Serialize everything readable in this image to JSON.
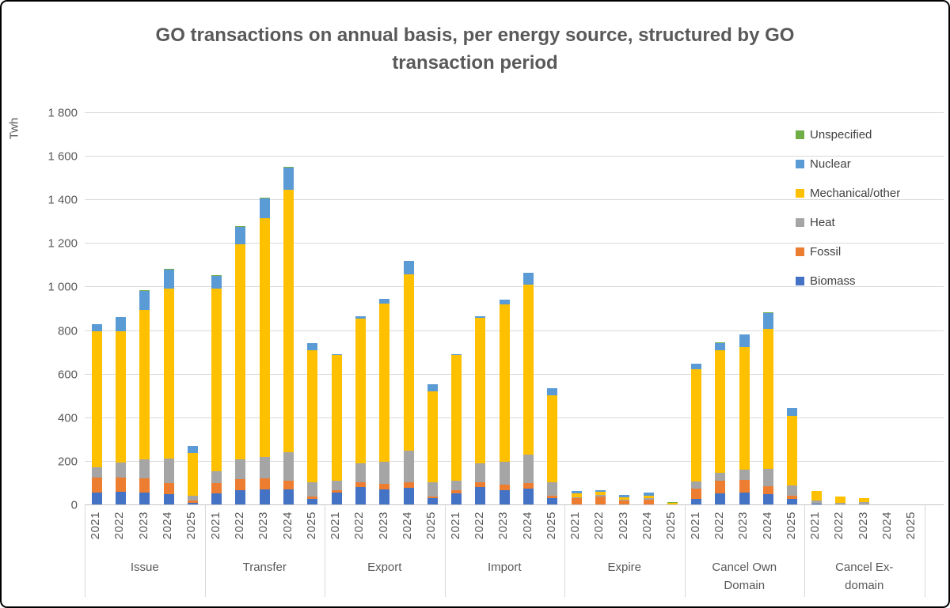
{
  "chart_data": {
    "type": "bar",
    "stacked": true,
    "title": "GO transactions on annual basis, per energy source, structured by GO transaction period",
    "ylabel": "Twh",
    "ylim": [
      0,
      1800
    ],
    "grid": true,
    "legend_position": "right",
    "yticks": [
      {
        "value": 0,
        "label": "0"
      },
      {
        "value": 200,
        "label": "200"
      },
      {
        "value": 400,
        "label": "400"
      },
      {
        "value": 600,
        "label": "600"
      },
      {
        "value": 800,
        "label": "800"
      },
      {
        "value": 1000,
        "label": "1 000"
      },
      {
        "value": 1200,
        "label": "1 200"
      },
      {
        "value": 1400,
        "label": "1 400"
      },
      {
        "value": 1600,
        "label": "1 600"
      },
      {
        "value": 1800,
        "label": "1 800"
      }
    ],
    "series_order_bottom_to_top": [
      "Biomass",
      "Fossil",
      "Heat",
      "Mechanical/other",
      "Nuclear",
      "Unspecified"
    ],
    "colors": {
      "Biomass": "#4472C4",
      "Fossil": "#ED7D31",
      "Heat": "#A5A5A5",
      "Mechanical/other": "#FFC000",
      "Nuclear": "#5B9BD5",
      "Unspecified": "#70AD47"
    },
    "legend": [
      {
        "label": "Unspecified",
        "color": "#70AD47"
      },
      {
        "label": "Nuclear",
        "color": "#5B9BD5"
      },
      {
        "label": "Mechanical/other",
        "color": "#FFC000"
      },
      {
        "label": "Heat",
        "color": "#A5A5A5"
      },
      {
        "label": "Fossil",
        "color": "#ED7D31"
      },
      {
        "label": "Biomass",
        "color": "#4472C4"
      }
    ],
    "groups": [
      {
        "label": "Issue",
        "bars": [
          {
            "year": "2021",
            "values": {
              "Biomass": 59,
              "Fossil": 67,
              "Heat": 49,
              "Mechanical/other": 623,
              "Nuclear": 33,
              "Unspecified": 0
            }
          },
          {
            "year": "2022",
            "values": {
              "Biomass": 62,
              "Fossil": 66,
              "Heat": 69,
              "Mechanical/other": 601,
              "Nuclear": 64,
              "Unspecified": 0
            }
          },
          {
            "year": "2023",
            "values": {
              "Biomass": 58,
              "Fossil": 65,
              "Heat": 87,
              "Mechanical/other": 686,
              "Nuclear": 87,
              "Unspecified": 3
            }
          },
          {
            "year": "2024",
            "values": {
              "Biomass": 50,
              "Fossil": 52,
              "Heat": 111,
              "Mechanical/other": 782,
              "Nuclear": 88,
              "Unspecified": 3
            }
          },
          {
            "year": "2025",
            "values": {
              "Biomass": 11,
              "Fossil": 11,
              "Heat": 21,
              "Mechanical/other": 195,
              "Nuclear": 36,
              "Unspecified": 0
            }
          }
        ]
      },
      {
        "label": "Transfer",
        "bars": [
          {
            "year": "2021",
            "values": {
              "Biomass": 56,
              "Fossil": 45,
              "Heat": 56,
              "Mechanical/other": 838,
              "Nuclear": 56,
              "Unspecified": 3
            }
          },
          {
            "year": "2022",
            "values": {
              "Biomass": 68,
              "Fossil": 53,
              "Heat": 90,
              "Mechanical/other": 987,
              "Nuclear": 80,
              "Unspecified": 3
            }
          },
          {
            "year": "2023",
            "values": {
              "Biomass": 72,
              "Fossil": 53,
              "Heat": 97,
              "Mechanical/other": 1097,
              "Nuclear": 90,
              "Unspecified": 3
            }
          },
          {
            "year": "2024",
            "values": {
              "Biomass": 72,
              "Fossil": 39,
              "Heat": 132,
              "Mechanical/other": 1206,
              "Nuclear": 100,
              "Unspecified": 4
            }
          },
          {
            "year": "2025",
            "values": {
              "Biomass": 29,
              "Fossil": 10,
              "Heat": 65,
              "Mechanical/other": 607,
              "Nuclear": 33,
              "Unspecified": 0
            }
          }
        ]
      },
      {
        "label": "Export",
        "bars": [
          {
            "year": "2021",
            "values": {
              "Biomass": 58,
              "Fossil": 12,
              "Heat": 44,
              "Mechanical/other": 576,
              "Nuclear": 5,
              "Unspecified": 0
            }
          },
          {
            "year": "2022",
            "values": {
              "Biomass": 85,
              "Fossil": 19,
              "Heat": 87,
              "Mechanical/other": 666,
              "Nuclear": 12,
              "Unspecified": 0
            }
          },
          {
            "year": "2023",
            "values": {
              "Biomass": 73,
              "Fossil": 24,
              "Heat": 104,
              "Mechanical/other": 725,
              "Nuclear": 23,
              "Unspecified": 0
            }
          },
          {
            "year": "2024",
            "values": {
              "Biomass": 79,
              "Fossil": 28,
              "Heat": 142,
              "Mechanical/other": 810,
              "Nuclear": 61,
              "Unspecified": 0
            }
          },
          {
            "year": "2025",
            "values": {
              "Biomass": 33,
              "Fossil": 8,
              "Heat": 65,
              "Mechanical/other": 417,
              "Nuclear": 31,
              "Unspecified": 0
            }
          }
        ]
      },
      {
        "label": "Import",
        "bars": [
          {
            "year": "2021",
            "values": {
              "Biomass": 56,
              "Fossil": 12,
              "Heat": 46,
              "Mechanical/other": 576,
              "Nuclear": 4,
              "Unspecified": 0
            }
          },
          {
            "year": "2022",
            "values": {
              "Biomass": 82,
              "Fossil": 22,
              "Heat": 87,
              "Mechanical/other": 670,
              "Nuclear": 5,
              "Unspecified": 0
            }
          },
          {
            "year": "2023",
            "values": {
              "Biomass": 70,
              "Fossil": 24,
              "Heat": 107,
              "Mechanical/other": 720,
              "Nuclear": 22,
              "Unspecified": 0
            }
          },
          {
            "year": "2024",
            "values": {
              "Biomass": 75,
              "Fossil": 26,
              "Heat": 130,
              "Mechanical/other": 783,
              "Nuclear": 52,
              "Unspecified": 0
            }
          },
          {
            "year": "2025",
            "values": {
              "Biomass": 34,
              "Fossil": 10,
              "Heat": 62,
              "Mechanical/other": 400,
              "Nuclear": 30,
              "Unspecified": 0
            }
          }
        ]
      },
      {
        "label": "Expire",
        "bars": [
          {
            "year": "2021",
            "values": {
              "Biomass": 2,
              "Fossil": 32,
              "Heat": 4,
              "Mechanical/other": 18,
              "Nuclear": 11,
              "Unspecified": 0
            }
          },
          {
            "year": "2022",
            "values": {
              "Biomass": 3,
              "Fossil": 38,
              "Heat": 6,
              "Mechanical/other": 13,
              "Nuclear": 10,
              "Unspecified": 0
            }
          },
          {
            "year": "2023",
            "values": {
              "Biomass": 1,
              "Fossil": 20,
              "Heat": 3,
              "Mechanical/other": 12,
              "Nuclear": 10,
              "Unspecified": 0
            }
          },
          {
            "year": "2024",
            "values": {
              "Biomass": 1,
              "Fossil": 25,
              "Heat": 6,
              "Mechanical/other": 10,
              "Nuclear": 15,
              "Unspecified": 0
            }
          },
          {
            "year": "2025",
            "values": {
              "Biomass": 0,
              "Fossil": 5,
              "Heat": 0,
              "Mechanical/other": 6,
              "Nuclear": 0,
              "Unspecified": 4
            }
          }
        ]
      },
      {
        "label": "Cancel Own Domain",
        "bars": [
          {
            "year": "2021",
            "values": {
              "Biomass": 29,
              "Fossil": 48,
              "Heat": 31,
              "Mechanical/other": 517,
              "Nuclear": 24,
              "Unspecified": 0
            }
          },
          {
            "year": "2022",
            "values": {
              "Biomass": 53,
              "Fossil": 60,
              "Heat": 36,
              "Mechanical/other": 563,
              "Nuclear": 31,
              "Unspecified": 2
            }
          },
          {
            "year": "2023",
            "values": {
              "Biomass": 59,
              "Fossil": 58,
              "Heat": 47,
              "Mechanical/other": 562,
              "Nuclear": 57,
              "Unspecified": 0
            }
          },
          {
            "year": "2024",
            "values": {
              "Biomass": 51,
              "Fossil": 35,
              "Heat": 82,
              "Mechanical/other": 640,
              "Nuclear": 74,
              "Unspecified": 2
            }
          },
          {
            "year": "2025",
            "values": {
              "Biomass": 29,
              "Fossil": 15,
              "Heat": 46,
              "Mechanical/other": 320,
              "Nuclear": 36,
              "Unspecified": 0
            }
          }
        ]
      },
      {
        "label": "Cancel Ex-domain",
        "bars": [
          {
            "year": "2021",
            "values": {
              "Biomass": 6,
              "Fossil": 0,
              "Heat": 16,
              "Mechanical/other": 45,
              "Nuclear": 0,
              "Unspecified": 0
            }
          },
          {
            "year": "2022",
            "values": {
              "Biomass": 5,
              "Fossil": 0,
              "Heat": 7,
              "Mechanical/other": 28,
              "Nuclear": 0,
              "Unspecified": 0
            }
          },
          {
            "year": "2023",
            "values": {
              "Biomass": 5,
              "Fossil": 0,
              "Heat": 8,
              "Mechanical/other": 18,
              "Nuclear": 0,
              "Unspecified": 0
            }
          },
          {
            "year": "2024",
            "values": {
              "Biomass": 0,
              "Fossil": 0,
              "Heat": 0,
              "Mechanical/other": 5,
              "Nuclear": 0,
              "Unspecified": 0
            }
          },
          {
            "year": "2025",
            "values": {
              "Biomass": 0,
              "Fossil": 0,
              "Heat": 0,
              "Mechanical/other": 0,
              "Nuclear": 4,
              "Unspecified": 0
            }
          }
        ]
      }
    ]
  }
}
